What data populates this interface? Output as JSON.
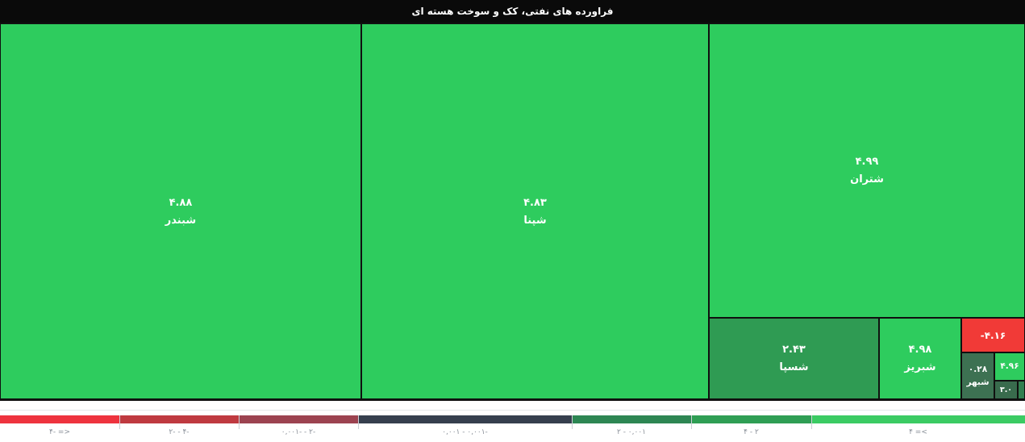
{
  "title_bar": {
    "text": "فراورده های نفتی، کک و سوخت هسته ای",
    "bg": "#0a0a0a",
    "fg": "#ffffff"
  },
  "chart_data": {
    "type": "heatmap",
    "variant": "treemap-market-map",
    "title": "فراورده های نفتی، کک و سوخت هسته ای",
    "direction": "rtl",
    "tiles": [
      {
        "symbol": "شبندر",
        "value_label": "۴.۸۸",
        "change_pct": 4.88,
        "color": "#2ecc5e",
        "text_color": "#ffffff"
      },
      {
        "symbol": "شپنا",
        "value_label": "۴.۸۳",
        "change_pct": 4.83,
        "color": "#2ecc5e",
        "text_color": "#ffffff"
      },
      {
        "symbol": "شتران",
        "value_label": "۴.۹۹",
        "change_pct": 4.99,
        "color": "#2ecc5e",
        "text_color": "#ffffff"
      },
      {
        "symbol": "شسپا",
        "value_label": "۲.۴۳",
        "change_pct": 2.43,
        "color": "#2f9b53",
        "text_color": "#ffffff"
      },
      {
        "symbol": "شبریز",
        "value_label": "۴.۹۸",
        "change_pct": 4.98,
        "color": "#2ecc5e",
        "text_color": "#ffffff"
      },
      {
        "symbol": "",
        "value_label": "-۴.۱۶",
        "change_pct": -4.16,
        "color": "#f13a37",
        "text_color": "#ffffff"
      },
      {
        "symbol": "شبهر",
        "value_label": "۰.۲۸",
        "change_pct": 0.28,
        "color": "#3d7152",
        "text_color": "#ffffff"
      },
      {
        "symbol": "",
        "value_label": "۴.۹۶",
        "change_pct": 4.96,
        "color": "#2ecc5e",
        "text_color": "#ffffff"
      },
      {
        "symbol": "",
        "value_label": "۳.۰",
        "change_pct": 3.0,
        "color": "#396b4d",
        "text_color": "#ffffff"
      },
      {
        "symbol": "",
        "value_label": "",
        "change_pct": null,
        "color": "#317f4f",
        "text_color": "#ffffff"
      }
    ],
    "legend": {
      "position": "bottom",
      "segments": [
        {
          "label": "۴- =>",
          "color": "#ee333e",
          "meaning": "<= -4"
        },
        {
          "label": "۲- - ۴-",
          "color": "#bf3a40",
          "meaning": "-4 to -2"
        },
        {
          "label": "۰,۰۰۱- - ۲-",
          "color": "#9c4350",
          "meaning": "-2 to -0.001"
        },
        {
          "label": "۰,۰۰۱ - ۰,۰۰۱-",
          "color": "#363f4e",
          "meaning": "-0.001 to 0.001"
        },
        {
          "label": "۲ - ۰,۰۰۱",
          "color": "#2d8653",
          "meaning": "0.001 to 2"
        },
        {
          "label": "۴ - ۲",
          "color": "#2f9e54",
          "meaning": "2 to 4"
        },
        {
          "label": "۴ =<",
          "color": "#3bcb63",
          "meaning": ">= 4"
        }
      ]
    }
  }
}
